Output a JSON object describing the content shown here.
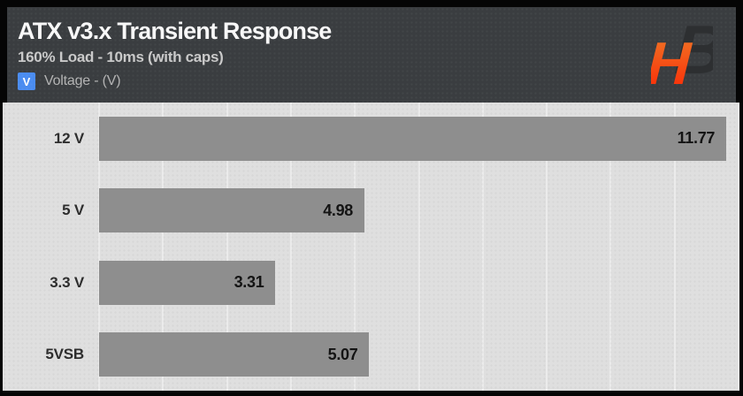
{
  "header": {
    "title": "ATX v3.x Transient Response",
    "subtitle": "160% Load - 10ms (with caps)",
    "legend": {
      "swatch_letter": "V",
      "swatch_color": "#4a8cf0",
      "label": "Voltage - (V)"
    },
    "logo": {
      "h_letter": "H",
      "b_letter": "B",
      "h_gradient_top": "#ef7b28",
      "h_gradient_bottom": "#fb2504",
      "b_color": "#2d2f31"
    }
  },
  "chart_data": {
    "type": "bar",
    "orientation": "horizontal",
    "title": "ATX v3.x Transient Response",
    "subtitle": "160% Load - 10ms (with caps)",
    "legend_entry": "Voltage - (V)",
    "categories": [
      "12 V",
      "5 V",
      "3.3 V",
      "5VSB"
    ],
    "values": [
      11.77,
      4.98,
      3.31,
      5.07
    ],
    "value_labels": [
      "11.77",
      "4.98",
      "3.31",
      "5.07"
    ],
    "xlabel": "",
    "ylabel": "",
    "xlim": [
      0,
      12
    ],
    "grid": true,
    "gridline_count": 11,
    "tick_labels_visible": false,
    "legend_position": "top-left",
    "bar_color": "#8e8e8e",
    "plot_bg": "#dfdfdf",
    "header_bg": "#3a3d40",
    "frame_color": "#050505"
  }
}
